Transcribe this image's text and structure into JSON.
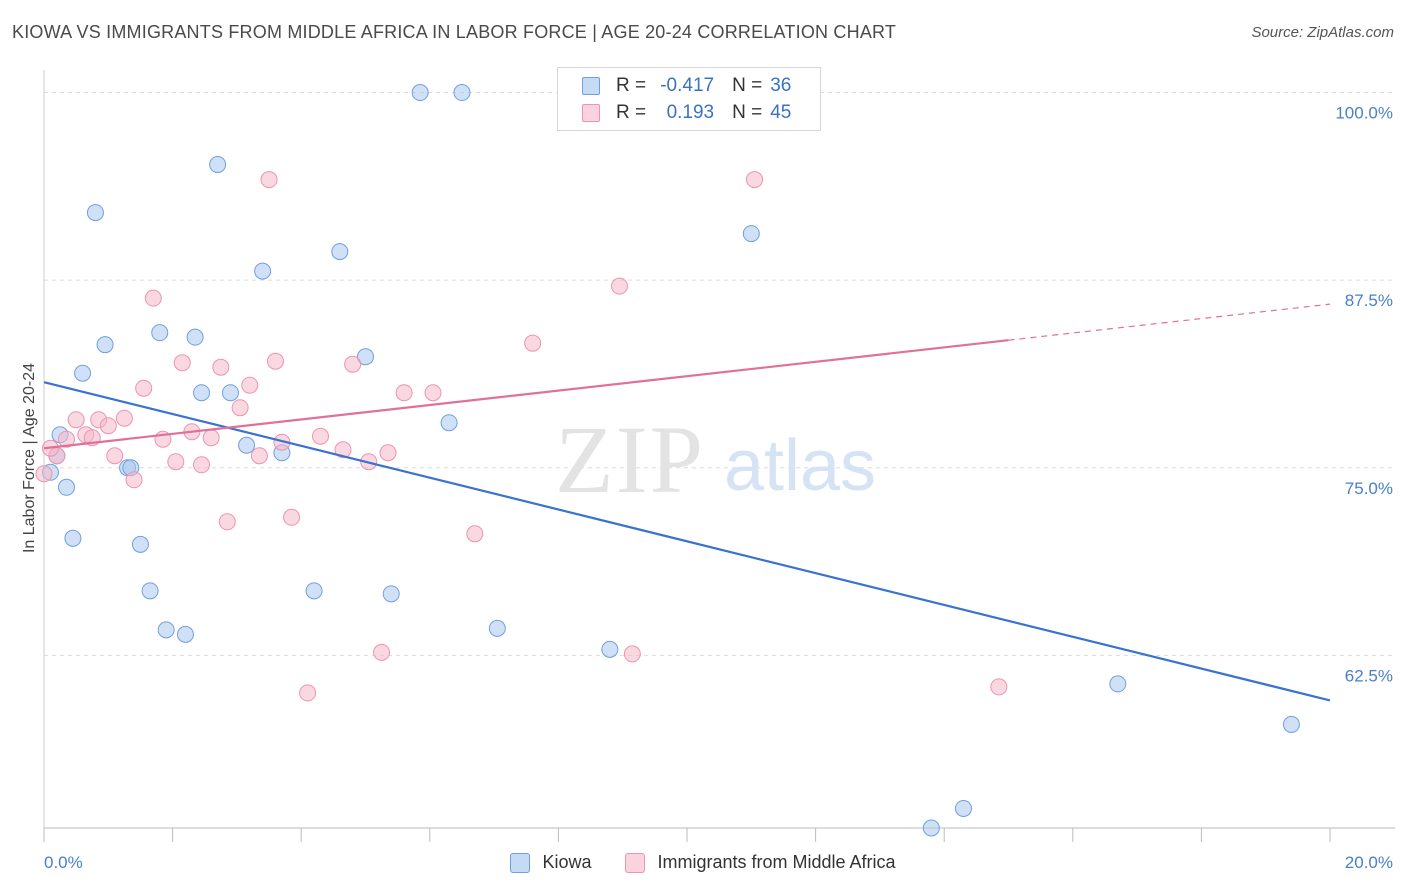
{
  "header": {
    "title": "KIOWA VS IMMIGRANTS FROM MIDDLE AFRICA IN LABOR FORCE | AGE 20-24 CORRELATION CHART",
    "source": "Source: ZipAtlas.com"
  },
  "watermark": {
    "zip": "ZIP",
    "atlas": "atlas"
  },
  "legend": {
    "rows": [
      {
        "r_label": "R =",
        "r_value": "-0.417",
        "n_label": "N =",
        "n_value": "36",
        "color": "#a9c8f0"
      },
      {
        "r_label": "R =",
        "r_value": "0.193",
        "n_label": "N =",
        "n_value": "45",
        "color": "#f6b8cb"
      }
    ]
  },
  "bottom_legend": {
    "items": [
      {
        "label": "Kiowa",
        "color": "#a9c8f0"
      },
      {
        "label": "Immigrants from Middle Africa",
        "color": "#f6b8cb"
      }
    ]
  },
  "chart_data": {
    "type": "scatter",
    "title": "KIOWA VS IMMIGRANTS FROM MIDDLE AFRICA IN LABOR FORCE | AGE 20-24 CORRELATION CHART",
    "xlabel": "",
    "ylabel": "In Labor Force | Age 20-24",
    "xlim": [
      0,
      20
    ],
    "ylim": [
      51,
      101.5
    ],
    "x_tick_labels": [
      "0.0%",
      "20.0%"
    ],
    "y_ticks": [
      62.5,
      75.0,
      87.5,
      100.0
    ],
    "y_tick_labels": [
      "62.5%",
      "75.0%",
      "87.5%",
      "100.0%"
    ],
    "grid": true,
    "legend_position": "top-center",
    "series": [
      {
        "name": "Kiowa",
        "color": "#a9c8f0",
        "stroke": "#6f9fe0",
        "line_color": "#3a72d0",
        "points": [
          [
            0.1,
            74.7
          ],
          [
            0.25,
            77.2
          ],
          [
            0.35,
            73.7
          ],
          [
            0.45,
            70.3
          ],
          [
            0.6,
            81.3
          ],
          [
            0.8,
            92.0
          ],
          [
            0.95,
            83.2
          ],
          [
            1.3,
            75.0
          ],
          [
            1.5,
            69.9
          ],
          [
            1.65,
            66.8
          ],
          [
            1.9,
            64.2
          ],
          [
            1.8,
            84.0
          ],
          [
            2.2,
            63.9
          ],
          [
            2.35,
            83.7
          ],
          [
            2.45,
            80.0
          ],
          [
            2.7,
            95.2
          ],
          [
            2.9,
            80.0
          ],
          [
            3.15,
            76.5
          ],
          [
            3.4,
            88.1
          ],
          [
            3.7,
            76.0
          ],
          [
            4.2,
            66.8
          ],
          [
            4.6,
            89.4
          ],
          [
            5.0,
            82.4
          ],
          [
            5.4,
            66.6
          ],
          [
            5.85,
            100.0
          ],
          [
            6.3,
            78.0
          ],
          [
            6.5,
            100.0
          ],
          [
            7.05,
            64.3
          ],
          [
            8.8,
            62.9
          ],
          [
            11.0,
            90.6
          ],
          [
            1.35,
            75.0
          ],
          [
            16.7,
            60.6
          ],
          [
            19.4,
            57.9
          ],
          [
            13.8,
            51.0
          ],
          [
            14.3,
            52.3
          ],
          [
            0.2,
            75.8
          ]
        ],
        "trend": {
          "x0": 0,
          "y0": 80.7,
          "x1": 20,
          "y1": 59.5
        }
      },
      {
        "name": "Immigrants from Middle Africa",
        "color": "#f6b8cb",
        "stroke": "#ee93b0",
        "line_color": "#e0709a",
        "points": [
          [
            0.0,
            74.6
          ],
          [
            0.2,
            75.8
          ],
          [
            0.35,
            76.9
          ],
          [
            0.5,
            78.2
          ],
          [
            0.65,
            77.2
          ],
          [
            0.75,
            77.0
          ],
          [
            0.85,
            78.2
          ],
          [
            1.0,
            77.8
          ],
          [
            1.1,
            75.8
          ],
          [
            1.25,
            78.3
          ],
          [
            1.4,
            74.2
          ],
          [
            1.55,
            80.3
          ],
          [
            1.7,
            86.3
          ],
          [
            1.85,
            76.9
          ],
          [
            2.05,
            75.4
          ],
          [
            2.15,
            82.0
          ],
          [
            2.3,
            77.4
          ],
          [
            2.45,
            75.2
          ],
          [
            2.6,
            77.0
          ],
          [
            2.75,
            81.7
          ],
          [
            2.85,
            71.4
          ],
          [
            3.05,
            79.0
          ],
          [
            3.2,
            80.5
          ],
          [
            3.35,
            75.8
          ],
          [
            3.5,
            94.2
          ],
          [
            3.6,
            82.1
          ],
          [
            3.7,
            76.7
          ],
          [
            3.85,
            71.7
          ],
          [
            4.1,
            60.0
          ],
          [
            4.3,
            77.1
          ],
          [
            4.65,
            76.2
          ],
          [
            4.8,
            81.9
          ],
          [
            5.05,
            75.4
          ],
          [
            5.25,
            62.7
          ],
          [
            5.35,
            76.0
          ],
          [
            5.6,
            80.0
          ],
          [
            6.05,
            80.0
          ],
          [
            6.7,
            70.6
          ],
          [
            7.6,
            83.3
          ],
          [
            8.95,
            87.1
          ],
          [
            9.15,
            62.6
          ],
          [
            11.05,
            94.2
          ],
          [
            11.7,
            100.0
          ],
          [
            14.85,
            60.4
          ],
          [
            0.1,
            76.3
          ]
        ],
        "trend": {
          "x0": 0,
          "y0": 76.3,
          "x1": 15.0,
          "y1": 83.5,
          "dash_to_x": 20,
          "dash_to_y": 85.9
        }
      }
    ]
  }
}
